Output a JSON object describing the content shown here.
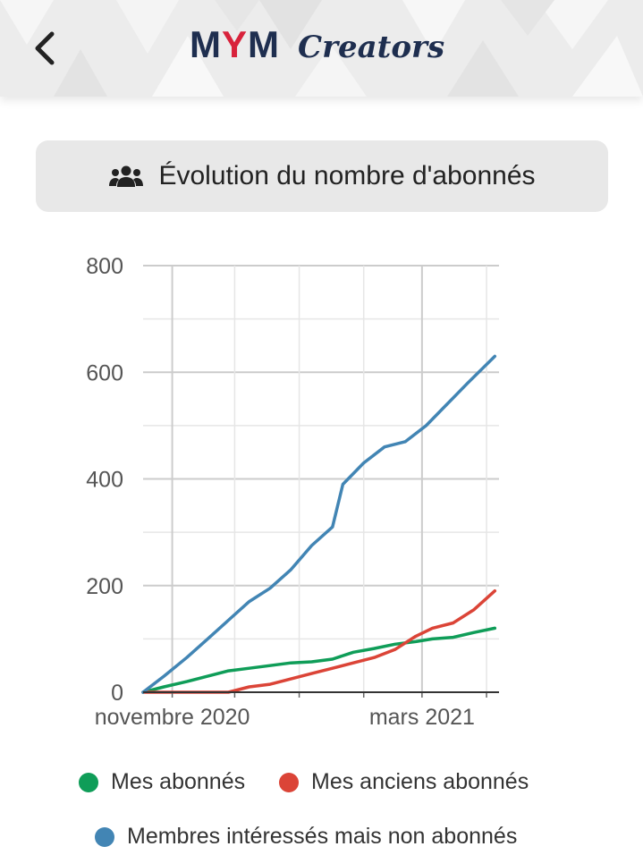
{
  "header": {
    "back_icon": "chevron-left-icon",
    "logo_main": "MYM",
    "logo_sub": "Creators",
    "colors": {
      "navy": "#1e2e4f",
      "red": "#d8223b"
    }
  },
  "title": {
    "icon": "users-icon",
    "text": "Évolution du nombre d'abonnés"
  },
  "chart_data": {
    "type": "line",
    "x_start": "2020-10-18",
    "x_end": "2021-04-07",
    "xlim": [
      "2020-10-18",
      "2021-04-07"
    ],
    "ylim": [
      0,
      800
    ],
    "yticks": [
      0,
      200,
      400,
      600,
      800
    ],
    "ytick_labels": [
      "0",
      "200",
      "400",
      "600",
      "800"
    ],
    "xtick_labels": [
      {
        "label": "novembre 2020",
        "date": "2020-11-01"
      },
      {
        "label": "mars 2021",
        "date": "2021-03-01"
      }
    ],
    "grid": true,
    "legend_position": "bottom",
    "series": [
      {
        "name": "Mes abonnés",
        "color": "#0f9d58",
        "points": [
          [
            "2020-10-18",
            0
          ],
          [
            "2020-10-28",
            10
          ],
          [
            "2020-11-08",
            20
          ],
          [
            "2020-11-18",
            30
          ],
          [
            "2020-11-28",
            40
          ],
          [
            "2020-12-08",
            45
          ],
          [
            "2020-12-18",
            50
          ],
          [
            "2020-12-28",
            55
          ],
          [
            "2021-01-07",
            57
          ],
          [
            "2021-01-17",
            62
          ],
          [
            "2021-01-27",
            75
          ],
          [
            "2021-02-06",
            82
          ],
          [
            "2021-02-16",
            90
          ],
          [
            "2021-02-26",
            95
          ],
          [
            "2021-03-06",
            100
          ],
          [
            "2021-03-16",
            103
          ],
          [
            "2021-03-26",
            112
          ],
          [
            "2021-04-05",
            120
          ]
        ]
      },
      {
        "name": "Mes anciens abonnés",
        "color": "#db4437",
        "points": [
          [
            "2020-10-18",
            0
          ],
          [
            "2020-11-28",
            0
          ],
          [
            "2020-12-08",
            10
          ],
          [
            "2020-12-18",
            15
          ],
          [
            "2020-12-28",
            25
          ],
          [
            "2021-01-07",
            35
          ],
          [
            "2021-01-17",
            45
          ],
          [
            "2021-01-27",
            55
          ],
          [
            "2021-02-06",
            65
          ],
          [
            "2021-02-16",
            80
          ],
          [
            "2021-02-26",
            105
          ],
          [
            "2021-03-06",
            120
          ],
          [
            "2021-03-16",
            130
          ],
          [
            "2021-03-26",
            155
          ],
          [
            "2021-04-05",
            190
          ]
        ]
      },
      {
        "name": "Membres intéressés mais non abonnés",
        "color": "#4285b4",
        "points": [
          [
            "2020-10-18",
            0
          ],
          [
            "2020-10-28",
            30
          ],
          [
            "2020-11-08",
            65
          ],
          [
            "2020-11-18",
            100
          ],
          [
            "2020-11-28",
            135
          ],
          [
            "2020-12-08",
            170
          ],
          [
            "2020-12-18",
            195
          ],
          [
            "2020-12-28",
            230
          ],
          [
            "2021-01-07",
            275
          ],
          [
            "2021-01-17",
            310
          ],
          [
            "2021-01-22",
            390
          ],
          [
            "2021-02-01",
            430
          ],
          [
            "2021-02-11",
            460
          ],
          [
            "2021-02-21",
            470
          ],
          [
            "2021-03-03",
            500
          ],
          [
            "2021-03-13",
            540
          ],
          [
            "2021-03-23",
            580
          ],
          [
            "2021-04-05",
            630
          ]
        ]
      }
    ]
  }
}
